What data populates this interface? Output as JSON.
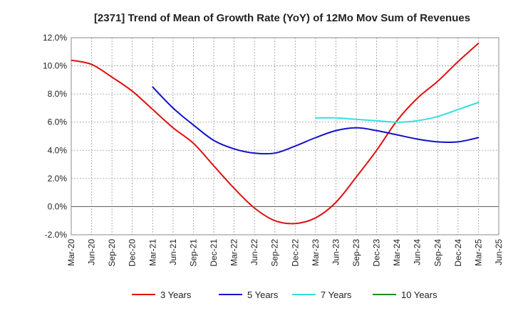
{
  "chart_data": {
    "type": "line",
    "title": "[2371]  Trend of Mean of Growth Rate (YoY) of 12Mo Mov Sum of Revenues",
    "xlabel": "",
    "ylabel": "",
    "ylim": [
      -2.0,
      12.0
    ],
    "yticks": [
      -2.0,
      0.0,
      2.0,
      4.0,
      6.0,
      8.0,
      10.0,
      12.0
    ],
    "ytick_labels": [
      "-2.0%",
      "0.0%",
      "2.0%",
      "4.0%",
      "6.0%",
      "8.0%",
      "10.0%",
      "12.0%"
    ],
    "x_tick_labels": [
      "Mar-20",
      "Jun-20",
      "Sep-20",
      "Dec-20",
      "Mar-21",
      "Jun-21",
      "Sep-21",
      "Dec-21",
      "Mar-22",
      "Jun-22",
      "Sep-22",
      "Dec-22",
      "Mar-23",
      "Jun-23",
      "Sep-23",
      "Dec-23",
      "Mar-24",
      "Jun-24",
      "Sep-24",
      "Dec-24",
      "Mar-25",
      "Jun-25"
    ],
    "grid": true,
    "legend_position": "bottom",
    "series": [
      {
        "name": "3 Years",
        "color": "#dd1111",
        "start_index": 0,
        "values": [
          10.4,
          10.1,
          9.2,
          8.2,
          6.9,
          5.6,
          4.5,
          2.9,
          1.3,
          -0.1,
          -1.0,
          -1.2,
          -0.8,
          0.3,
          2.1,
          4.0,
          6.1,
          7.7,
          8.9,
          10.3,
          11.6
        ]
      },
      {
        "name": "5 Years",
        "color": "#1111cc",
        "start_index": 4,
        "values": [
          8.5,
          7.0,
          5.8,
          4.7,
          4.1,
          3.8,
          3.8,
          4.3,
          4.9,
          5.4,
          5.6,
          5.4,
          5.1,
          4.8,
          4.6,
          4.6,
          4.9
        ]
      },
      {
        "name": "7 Years",
        "color": "#33e0e0",
        "start_index": 12,
        "values": [
          6.3,
          6.3,
          6.2,
          6.1,
          6.0,
          6.1,
          6.4,
          6.9,
          7.4
        ]
      },
      {
        "name": "10 Years",
        "color": "#228822",
        "start_index": 0,
        "values": []
      }
    ]
  }
}
